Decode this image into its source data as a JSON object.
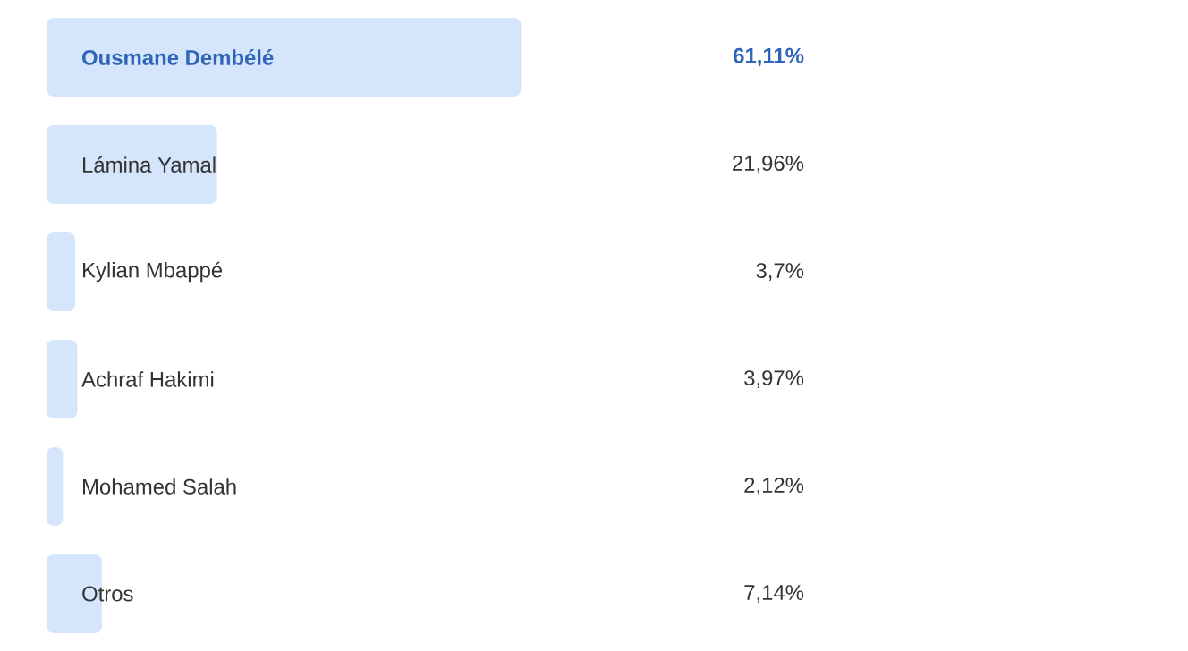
{
  "chart_data": {
    "type": "bar",
    "orientation": "horizontal",
    "categories": [
      "Ousmane Dembélé",
      "Lámina Yamal",
      "Kylian Mbappé",
      "Achraf Hakimi",
      "Mohamed Salah",
      "Otros"
    ],
    "values": [
      61.11,
      21.96,
      3.7,
      3.97,
      2.12,
      7.14
    ],
    "value_labels": [
      "61,11%",
      "21,96%",
      "3,7%",
      "3,97%",
      "2,12%",
      "7,14%"
    ],
    "color": "#d5e5fb"
  }
}
